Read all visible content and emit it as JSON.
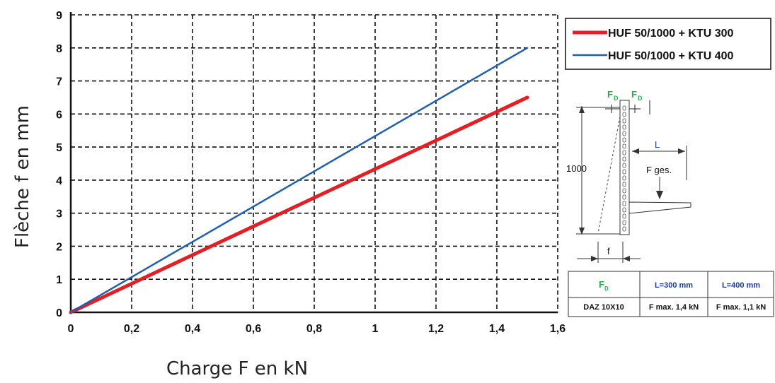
{
  "chart_data": {
    "type": "line",
    "xlabel": "Charge F en kN",
    "ylabel": "Flèche f en mm",
    "xlim": [
      0,
      1.6
    ],
    "ylim": [
      0,
      9
    ],
    "x_ticks": [
      "0",
      "0,2",
      "0,4",
      "0,6",
      "0,8",
      "1",
      "1,2",
      "1,4",
      "1,6"
    ],
    "y_ticks": [
      "0",
      "1",
      "2",
      "3",
      "4",
      "5",
      "6",
      "7",
      "8",
      "9"
    ],
    "grid": "dashed",
    "legend_position": "top-right",
    "series": [
      {
        "name": "HUF 50/1000 + KTU 300",
        "color": "#e31e24",
        "x": [
          0,
          1.5
        ],
        "y": [
          0,
          6.5
        ]
      },
      {
        "name": "HUF 50/1000 + KTU 400",
        "color": "#1f5fae",
        "x": [
          0,
          1.5
        ],
        "y": [
          0,
          8.0
        ]
      }
    ]
  },
  "diagram": {
    "fd_label": "F",
    "fd_sub": "D",
    "height_label": "1000",
    "length_label": "L",
    "force_label": "F ges.",
    "deflection_label": "f"
  },
  "table": {
    "header": [
      "F",
      "L=300 mm",
      "L=400 mm"
    ],
    "header_sub": "D",
    "row": [
      "DAZ 10X10",
      "F max. 1,4 kN",
      "F max. 1,1 kN"
    ]
  }
}
